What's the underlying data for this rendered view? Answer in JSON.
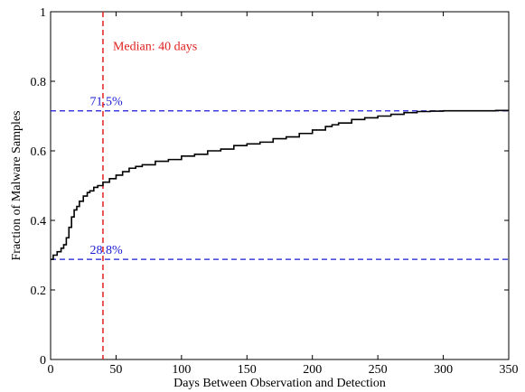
{
  "chart_data": {
    "type": "line",
    "title": "",
    "xlabel": "Days Between Observation and Detection",
    "ylabel": "Fraction of Malware Samples",
    "xlim": [
      0,
      350
    ],
    "ylim": [
      0,
      1
    ],
    "x_ticks": [
      0,
      50,
      100,
      150,
      200,
      250,
      300,
      350
    ],
    "y_ticks": [
      0,
      0.2,
      0.4,
      0.6,
      0.8,
      1
    ],
    "y_tick_labels": [
      "0",
      "0.2",
      "0.4",
      "0.6",
      "0.8",
      "1"
    ],
    "grid": false,
    "series": [
      {
        "color": "#000000",
        "style": "step",
        "x": [
          0,
          2,
          5,
          8,
          10,
          12,
          14,
          16,
          18,
          20,
          22,
          25,
          28,
          30,
          33,
          36,
          40,
          45,
          50,
          55,
          60,
          65,
          70,
          80,
          90,
          100,
          110,
          120,
          130,
          140,
          150,
          160,
          170,
          180,
          190,
          200,
          210,
          215,
          220,
          230,
          240,
          250,
          260,
          270,
          280,
          290,
          300,
          310,
          320,
          330,
          340,
          350
        ],
        "y": [
          0.288,
          0.3,
          0.31,
          0.32,
          0.33,
          0.35,
          0.38,
          0.41,
          0.43,
          0.44,
          0.455,
          0.47,
          0.48,
          0.485,
          0.495,
          0.5,
          0.51,
          0.52,
          0.53,
          0.54,
          0.55,
          0.555,
          0.56,
          0.57,
          0.575,
          0.585,
          0.59,
          0.6,
          0.605,
          0.615,
          0.62,
          0.625,
          0.635,
          0.64,
          0.65,
          0.66,
          0.67,
          0.675,
          0.68,
          0.69,
          0.695,
          0.7,
          0.705,
          0.71,
          0.713,
          0.714,
          0.715,
          0.715,
          0.715,
          0.715,
          0.716,
          0.716
        ]
      }
    ],
    "reference_lines": [
      {
        "orientation": "horizontal",
        "value": 0.715,
        "color": "#1a1ad4",
        "label": "71.5%",
        "label_x": 30
      },
      {
        "orientation": "horizontal",
        "value": 0.288,
        "color": "#1a1ad4",
        "label": "28.8%",
        "label_x": 30
      },
      {
        "orientation": "vertical",
        "value": 40,
        "color": "#e0201f",
        "label": "Median: 40 days",
        "label_y": 0.89
      }
    ]
  }
}
